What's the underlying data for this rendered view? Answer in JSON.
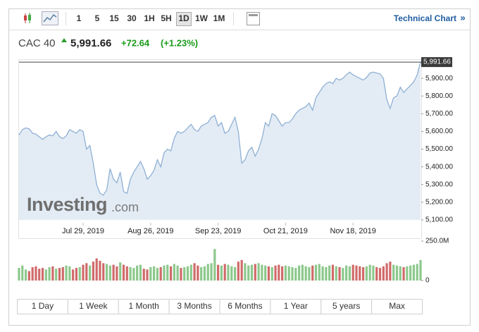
{
  "toolbar": {
    "intervals": [
      "1",
      "5",
      "15",
      "30",
      "1H",
      "5H",
      "1D",
      "1W",
      "1M"
    ],
    "selected": "1D",
    "link": "Technical Chart",
    "link_arrow": "»"
  },
  "header": {
    "name": "CAC 40",
    "price": "5,991.66",
    "change": "+72.64",
    "change_pct": "(+1.23%)"
  },
  "watermark": {
    "brand": "Investing",
    "suffix": ".com"
  },
  "chart_data": {
    "type": "area",
    "color": "#8fb0d3",
    "fill": "#e3ecf5",
    "grid": false,
    "x": [
      "2019-07-02",
      "2019-07-03",
      "2019-07-04",
      "2019-07-05",
      "2019-07-08",
      "2019-07-09",
      "2019-07-10",
      "2019-07-11",
      "2019-07-12",
      "2019-07-15",
      "2019-07-16",
      "2019-07-17",
      "2019-07-18",
      "2019-07-19",
      "2019-07-22",
      "2019-07-23",
      "2019-07-24",
      "2019-07-25",
      "2019-07-26",
      "2019-07-29",
      "2019-07-30",
      "2019-07-31",
      "2019-08-01",
      "2019-08-02",
      "2019-08-05",
      "2019-08-06",
      "2019-08-07",
      "2019-08-08",
      "2019-08-09",
      "2019-08-12",
      "2019-08-13",
      "2019-08-14",
      "2019-08-15",
      "2019-08-16",
      "2019-08-19",
      "2019-08-20",
      "2019-08-21",
      "2019-08-22",
      "2019-08-23",
      "2019-08-26",
      "2019-08-27",
      "2019-08-28",
      "2019-08-29",
      "2019-08-30",
      "2019-09-02",
      "2019-09-03",
      "2019-09-04",
      "2019-09-05",
      "2019-09-06",
      "2019-09-09",
      "2019-09-10",
      "2019-09-11",
      "2019-09-12",
      "2019-09-13",
      "2019-09-16",
      "2019-09-17",
      "2019-09-18",
      "2019-09-19",
      "2019-09-20",
      "2019-09-23",
      "2019-09-24",
      "2019-09-25",
      "2019-09-26",
      "2019-09-27",
      "2019-09-30",
      "2019-10-01",
      "2019-10-02",
      "2019-10-03",
      "2019-10-04",
      "2019-10-07",
      "2019-10-08",
      "2019-10-09",
      "2019-10-10",
      "2019-10-11",
      "2019-10-14",
      "2019-10-15",
      "2019-10-16",
      "2019-10-17",
      "2019-10-18",
      "2019-10-21",
      "2019-10-22",
      "2019-10-23",
      "2019-10-24",
      "2019-10-25",
      "2019-10-28",
      "2019-10-29",
      "2019-10-30",
      "2019-10-31",
      "2019-11-01",
      "2019-11-04",
      "2019-11-05",
      "2019-11-06",
      "2019-11-07",
      "2019-11-08",
      "2019-11-11",
      "2019-11-12",
      "2019-11-13",
      "2019-11-14",
      "2019-11-15",
      "2019-11-18",
      "2019-11-19",
      "2019-11-20",
      "2019-11-21",
      "2019-11-22",
      "2019-11-25",
      "2019-11-26",
      "2019-11-27",
      "2019-11-28",
      "2019-11-29",
      "2019-12-02",
      "2019-12-03",
      "2019-12-04",
      "2019-12-05",
      "2019-12-06",
      "2019-12-09",
      "2019-12-10",
      "2019-12-11",
      "2019-12-12",
      "2019-12-13",
      "2019-12-16"
    ],
    "values": [
      5580,
      5610,
      5620,
      5615,
      5590,
      5585,
      5570,
      5555,
      5570,
      5580,
      5575,
      5600,
      5570,
      5560,
      5575,
      5610,
      5600,
      5590,
      5610,
      5600,
      5500,
      5520,
      5420,
      5300,
      5250,
      5240,
      5270,
      5390,
      5330,
      5310,
      5370,
      5260,
      5250,
      5330,
      5370,
      5400,
      5430,
      5390,
      5330,
      5350,
      5380,
      5440,
      5400,
      5480,
      5500,
      5490,
      5560,
      5600,
      5590,
      5600,
      5620,
      5640,
      5610,
      5600,
      5630,
      5640,
      5650,
      5680,
      5690,
      5630,
      5650,
      5590,
      5600,
      5640,
      5680,
      5600,
      5420,
      5440,
      5490,
      5510,
      5460,
      5500,
      5560,
      5650,
      5630,
      5700,
      5690,
      5660,
      5630,
      5650,
      5650,
      5670,
      5700,
      5720,
      5730,
      5740,
      5760,
      5720,
      5790,
      5820,
      5850,
      5870,
      5880,
      5870,
      5900,
      5890,
      5900,
      5920,
      5935,
      5920,
      5910,
      5900,
      5890,
      5905,
      5930,
      5935,
      5930,
      5925,
      5900,
      5780,
      5730,
      5790,
      5800,
      5850,
      5820,
      5840,
      5860,
      5880,
      5919.02,
      5991.66
    ],
    "ylim": [
      5100,
      6000
    ],
    "yticks": [
      {
        "value": 5100,
        "label": "5,100.00"
      },
      {
        "value": 5200,
        "label": "5,200.00"
      },
      {
        "value": 5300,
        "label": "5,300.00"
      },
      {
        "value": 5400,
        "label": "5,400.00"
      },
      {
        "value": 5500,
        "label": "5,500.00"
      },
      {
        "value": 5600,
        "label": "5,600.00"
      },
      {
        "value": 5700,
        "label": "5,700.00"
      },
      {
        "value": 5800,
        "label": "5,800.00"
      },
      {
        "value": 5900,
        "label": "5,900.00"
      }
    ],
    "xticks": [
      {
        "value": "2019-07-29",
        "label": "Jul 29, 2019"
      },
      {
        "value": "2019-08-26",
        "label": "Aug 26, 2019"
      },
      {
        "value": "2019-09-23",
        "label": "Sep 23, 2019"
      },
      {
        "value": "2019-10-21",
        "label": "Oct 21, 2019"
      },
      {
        "value": "2019-11-18",
        "label": "Nov 18, 2019"
      }
    ],
    "volume": {
      "type": "bar",
      "up_color": "#8cc88c",
      "down_color": "#d06a6a",
      "values": [
        80000000,
        95000000,
        70000000,
        60000000,
        85000000,
        90000000,
        75000000,
        80000000,
        70000000,
        85000000,
        90000000,
        75000000,
        80000000,
        85000000,
        95000000,
        90000000,
        70000000,
        80000000,
        85000000,
        100000000,
        110000000,
        95000000,
        120000000,
        140000000,
        125000000,
        110000000,
        105000000,
        95000000,
        100000000,
        90000000,
        115000000,
        100000000,
        90000000,
        85000000,
        80000000,
        95000000,
        100000000,
        75000000,
        70000000,
        85000000,
        90000000,
        80000000,
        85000000,
        95000000,
        100000000,
        90000000,
        105000000,
        95000000,
        80000000,
        85000000,
        90000000,
        100000000,
        110000000,
        95000000,
        85000000,
        90000000,
        105000000,
        110000000,
        200000000,
        100000000,
        95000000,
        105000000,
        100000000,
        90000000,
        85000000,
        120000000,
        130000000,
        110000000,
        95000000,
        100000000,
        105000000,
        110000000,
        100000000,
        95000000,
        90000000,
        85000000,
        95000000,
        100000000,
        90000000,
        95000000,
        90000000,
        85000000,
        80000000,
        95000000,
        100000000,
        90000000,
        85000000,
        95000000,
        100000000,
        105000000,
        90000000,
        85000000,
        95000000,
        100000000,
        90000000,
        85000000,
        80000000,
        95000000,
        90000000,
        100000000,
        95000000,
        90000000,
        85000000,
        90000000,
        100000000,
        95000000,
        85000000,
        80000000,
        90000000,
        110000000,
        120000000,
        100000000,
        95000000,
        90000000,
        85000000,
        90000000,
        95000000,
        100000000,
        105000000,
        130000000
      ],
      "y2lim": [
        0,
        250000000
      ],
      "y2ticks": [
        0,
        {
          "value": 250000000,
          "label": "250.0M"
        }
      ]
    }
  },
  "ranges": [
    "1 Day",
    "1 Week",
    "1 Month",
    "3 Months",
    "6 Months",
    "1 Year",
    "5 years",
    "Max"
  ]
}
